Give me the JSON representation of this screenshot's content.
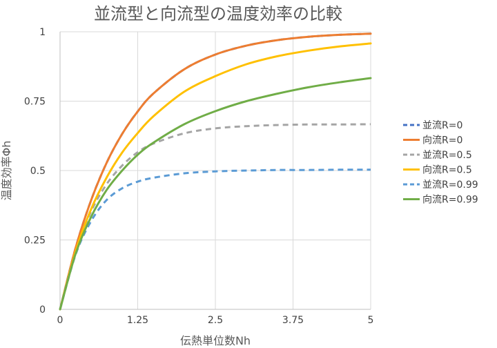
{
  "chart_data": {
    "type": "line",
    "title": "並流型と向流型の温度効率の比較",
    "xlabel": "伝熱単位数Nh",
    "ylabel": "温度効率Φh",
    "xlim": [
      0,
      5
    ],
    "ylim": [
      0,
      1
    ],
    "x_ticks": [
      "0",
      "1.25",
      "2.5",
      "3.75",
      "5"
    ],
    "y_ticks": [
      "0",
      "0.25",
      "0.5",
      "0.75",
      "1"
    ],
    "grid": true,
    "legend_position": "right",
    "x": [
      0,
      0.25,
      0.5,
      0.75,
      1,
      1.25,
      1.5,
      2,
      2.5,
      3,
      3.5,
      4,
      4.5,
      5
    ],
    "series": [
      {
        "name": "並流R=0",
        "color": "#4472C4",
        "dash": "dashed",
        "values": [
          0,
          0.221,
          0.393,
          0.528,
          0.632,
          0.713,
          0.777,
          0.865,
          0.918,
          0.95,
          0.97,
          0.982,
          0.989,
          0.993
        ]
      },
      {
        "name": "向流R=0",
        "color": "#ED7D31",
        "dash": "solid",
        "values": [
          0,
          0.221,
          0.393,
          0.528,
          0.632,
          0.713,
          0.777,
          0.865,
          0.918,
          0.95,
          0.97,
          0.982,
          0.989,
          0.993
        ]
      },
      {
        "name": "並流R=0.5",
        "color": "#A5A5A5",
        "dash": "dashed",
        "values": [
          0,
          0.208,
          0.353,
          0.451,
          0.518,
          0.566,
          0.597,
          0.634,
          0.652,
          0.66,
          0.664,
          0.666,
          0.666,
          0.667
        ]
      },
      {
        "name": "向流R=0.5",
        "color": "#FFC000",
        "dash": "solid",
        "values": [
          0,
          0.209,
          0.361,
          0.475,
          0.565,
          0.635,
          0.695,
          0.784,
          0.84,
          0.883,
          0.912,
          0.932,
          0.947,
          0.958
        ]
      },
      {
        "name": "並流R=0.99",
        "color": "#5B9BD5",
        "dash": "dashed",
        "values": [
          0,
          0.197,
          0.318,
          0.394,
          0.436,
          0.46,
          0.474,
          0.49,
          0.497,
          0.5,
          0.502,
          0.502,
          0.503,
          0.503
        ]
      },
      {
        "name": "向流R=0.99",
        "color": "#70AD47",
        "dash": "solid",
        "values": [
          0,
          0.2,
          0.333,
          0.43,
          0.5,
          0.557,
          0.6,
          0.667,
          0.714,
          0.75,
          0.777,
          0.8,
          0.818,
          0.833
        ]
      }
    ]
  }
}
